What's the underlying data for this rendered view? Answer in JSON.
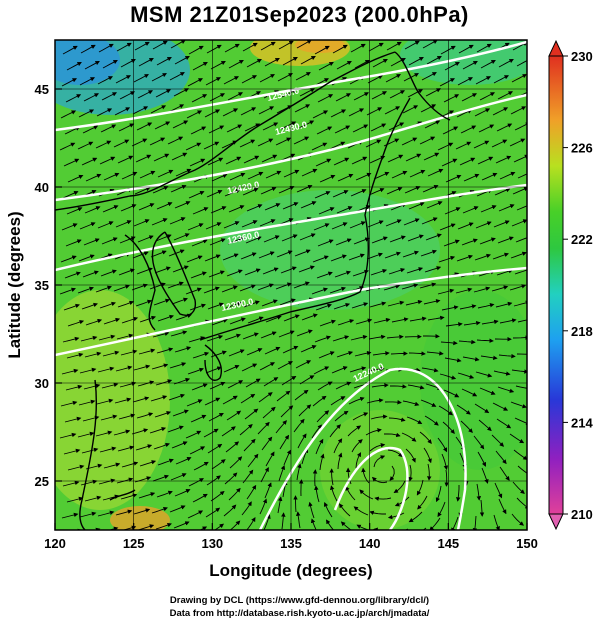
{
  "title": "MSM 21Z01Sep2023 (200.0hPa)",
  "axes": {
    "xlabel": "Longitude (degrees)",
    "ylabel": "Latitude  (degrees)",
    "xticks": [
      "120",
      "125",
      "130",
      "135",
      "140",
      "145",
      "150"
    ],
    "yticks": [
      "25",
      "30",
      "35",
      "40",
      "45"
    ]
  },
  "colorbar": {
    "ticks": [
      "210",
      "214",
      "218",
      "222",
      "226",
      "230"
    ],
    "min": 210,
    "max": 230
  },
  "contour_labels": [
    "12240.0",
    "12300.0",
    "12360.0",
    "12420.0",
    "12480.0",
    "12540.0"
  ],
  "credits": {
    "line1": "Drawing by DCL (https://www.gfd-dennou.org/library/dcl/)",
    "line2": "Data from http://database.rish.kyoto-u.ac.jp/arch/jmadata/"
  },
  "chart_data": {
    "type": "heatmap",
    "title": "MSM 21Z01Sep2023 (200.0hPa)",
    "xlabel": "Longitude (degrees)",
    "ylabel": "Latitude  (degrees)",
    "xlim": [
      120,
      150
    ],
    "ylim": [
      22.5,
      47.5
    ],
    "colorbar_range": [
      210,
      230
    ],
    "overlays": [
      "temperature shading (K)",
      "geopotential height contours (white)",
      "wind streamlines (black)",
      "coastlines"
    ]
  }
}
